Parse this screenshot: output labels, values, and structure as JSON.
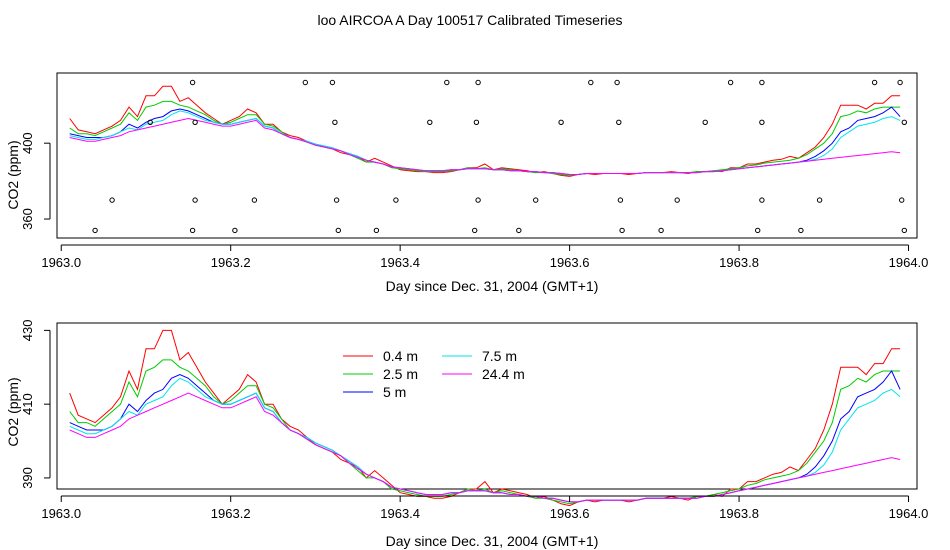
{
  "title": "loo AIRCOA A  Day 100517  Calibrated Timeseries",
  "colors": {
    "0.4 m": "#ff0000",
    "2.5 m": "#00cc00",
    "5 m": "#0000ff",
    "7.5 m": "#00e5ee",
    "24.4 m": "#ff00ff",
    "flags": "#000000"
  },
  "chart_data": [
    {
      "type": "line",
      "xlabel": "Day since Dec. 31, 2004 (GMT+1)",
      "ylabel": "CO2 (ppm)",
      "xlim": [
        1962.995,
        1964.01
      ],
      "ylim": [
        350,
        437
      ],
      "xticks": [
        1963.0,
        1963.2,
        1963.4,
        1963.6,
        1963.8,
        1964.0
      ],
      "xtick_labels": [
        "1963.0",
        "1963.2",
        "1963.4",
        "1963.6",
        "1963.8",
        "1964.0"
      ],
      "yticks": [
        360,
        400
      ],
      "ytick_labels": [
        "360",
        "400"
      ],
      "grid": false,
      "legend": "none",
      "x": [
        1963.01,
        1963.02,
        1963.03,
        1963.04,
        1963.05,
        1963.06,
        1963.07,
        1963.08,
        1963.09,
        1963.1,
        1963.11,
        1963.12,
        1963.13,
        1963.14,
        1963.15,
        1963.16,
        1963.17,
        1963.18,
        1963.19,
        1963.2,
        1963.21,
        1963.22,
        1963.23,
        1963.24,
        1963.25,
        1963.26,
        1963.27,
        1963.28,
        1963.29,
        1963.3,
        1963.31,
        1963.32,
        1963.33,
        1963.34,
        1963.35,
        1963.36,
        1963.37,
        1963.38,
        1963.39,
        1963.4,
        1963.41,
        1963.42,
        1963.43,
        1963.44,
        1963.45,
        1963.46,
        1963.47,
        1963.48,
        1963.49,
        1963.5,
        1963.51,
        1963.52,
        1963.53,
        1963.54,
        1963.55,
        1963.56,
        1963.57,
        1963.58,
        1963.59,
        1963.6,
        1963.61,
        1963.62,
        1963.63,
        1963.64,
        1963.65,
        1963.66,
        1963.67,
        1963.68,
        1963.69,
        1963.7,
        1963.71,
        1963.72,
        1963.73,
        1963.74,
        1963.75,
        1963.76,
        1963.77,
        1963.78,
        1963.79,
        1963.8,
        1963.81,
        1963.82,
        1963.83,
        1963.84,
        1963.85,
        1963.86,
        1963.87,
        1963.88,
        1963.89,
        1963.9,
        1963.91,
        1963.92,
        1963.93,
        1963.94,
        1963.95,
        1963.96,
        1963.97,
        1963.98,
        1963.99
      ],
      "series": [
        {
          "name": "0.4 m",
          "values": [
            413,
            407,
            406,
            405,
            407,
            409,
            412,
            419,
            414,
            425,
            425,
            430,
            430,
            422,
            424,
            420,
            416,
            413,
            410,
            412,
            414,
            418,
            416,
            410,
            410,
            406,
            404,
            403,
            401,
            399,
            398,
            397,
            395,
            394,
            393,
            390,
            392,
            390,
            388,
            386,
            385.5,
            385,
            385,
            384.5,
            384.5,
            385,
            386,
            387,
            387,
            389,
            386,
            387,
            386.5,
            386,
            385.5,
            384.5,
            385,
            384,
            383,
            382.5,
            383.5,
            384,
            383.5,
            384,
            384,
            384,
            383.5,
            384,
            384.5,
            384.5,
            384.5,
            385,
            384.5,
            384,
            385,
            385,
            385.5,
            385,
            387,
            387,
            389,
            389,
            390,
            391,
            391.5,
            393,
            392,
            395,
            398,
            403,
            410,
            420,
            420,
            420,
            418,
            421,
            421,
            425,
            425
          ]
        },
        {
          "name": "2.5 m",
          "values": [
            408,
            405,
            405,
            404,
            406,
            408,
            410,
            416,
            412,
            419,
            420,
            422,
            422,
            420,
            419,
            417,
            415,
            412,
            410,
            411,
            413,
            415,
            415,
            410,
            409,
            406,
            403,
            402,
            400.5,
            399,
            398,
            397,
            396,
            394,
            392,
            390,
            390,
            389,
            387,
            386.5,
            386,
            385.5,
            385,
            385,
            385,
            385.5,
            386,
            387,
            386.5,
            387,
            386,
            386.5,
            386,
            385.5,
            385,
            384.5,
            384.5,
            384,
            383.5,
            383,
            383.5,
            384,
            384,
            384,
            384,
            384,
            384,
            384,
            384.5,
            384.5,
            384.5,
            384.5,
            384.5,
            384.5,
            385,
            385,
            385.5,
            386,
            386.5,
            387,
            388,
            388.5,
            389.5,
            390,
            390.5,
            391,
            392,
            394,
            397,
            400,
            405,
            414,
            415,
            417,
            416,
            418,
            419,
            419,
            419
          ]
        },
        {
          "name": "5 m",
          "values": [
            405,
            404,
            403,
            403,
            403,
            404,
            406,
            410,
            408,
            411,
            413,
            414,
            417,
            418,
            417,
            415,
            413,
            411,
            410,
            410,
            411,
            412,
            413,
            409,
            408,
            405,
            403,
            402,
            401,
            399.5,
            398.5,
            397.5,
            396,
            394.5,
            393,
            391,
            390,
            389,
            387.5,
            387,
            386.5,
            386,
            385.5,
            385.5,
            385.5,
            386,
            386,
            386.5,
            386.5,
            386.5,
            386,
            386,
            385.5,
            385.5,
            385,
            385,
            384.5,
            384.5,
            384,
            383.5,
            383.5,
            384,
            384,
            384,
            384,
            384,
            384,
            384,
            384.5,
            384.5,
            384.5,
            384.5,
            384.5,
            384.5,
            384.5,
            385,
            385,
            385.5,
            386,
            386.5,
            387,
            387.5,
            388,
            388.5,
            389,
            389.5,
            390,
            391,
            393,
            396,
            400,
            406,
            408,
            412,
            413,
            414,
            416,
            419,
            414
          ]
        },
        {
          "name": "7.5 m",
          "values": [
            404,
            403,
            402,
            402,
            403,
            404,
            406,
            408,
            407,
            410,
            411,
            412,
            415,
            417,
            416,
            414,
            412,
            411,
            410,
            410,
            411,
            412,
            413,
            409,
            408,
            405,
            403,
            402,
            401,
            399.5,
            398.5,
            397.5,
            396,
            394.5,
            393,
            391,
            390,
            389,
            387.5,
            387,
            386.5,
            386,
            385.5,
            385.5,
            385.5,
            386,
            386,
            386.5,
            386.5,
            386.5,
            386,
            386,
            385.5,
            385.5,
            385,
            385,
            384.5,
            384.5,
            384,
            383.5,
            383.5,
            384,
            384,
            384,
            384,
            384,
            384,
            384,
            384.5,
            384.5,
            384.5,
            384.5,
            384.5,
            384.5,
            384.5,
            385,
            385,
            385.5,
            386,
            386.5,
            387,
            387.5,
            388,
            388.5,
            389,
            389.5,
            390,
            390.5,
            391.5,
            393.5,
            397,
            403,
            406,
            409,
            410,
            411,
            413,
            414,
            412
          ]
        },
        {
          "name": "24.4 m",
          "values": [
            403,
            402,
            401,
            401,
            402,
            403,
            404,
            406,
            407,
            408,
            409,
            410,
            411,
            412,
            413,
            412,
            411,
            410,
            409,
            409,
            410,
            411,
            412,
            408,
            407,
            405,
            403,
            402,
            400.5,
            399,
            398,
            397,
            396,
            394,
            392.5,
            391,
            390,
            389,
            387.5,
            387,
            386.5,
            386,
            385.5,
            385.5,
            385.5,
            386,
            386,
            386.5,
            386.5,
            386.5,
            386,
            386,
            385.5,
            385.5,
            385,
            385,
            384.5,
            384.5,
            384,
            383.5,
            383.5,
            384,
            384,
            384,
            384,
            384,
            384,
            384,
            384.5,
            384.5,
            384.5,
            384.5,
            384.5,
            384.5,
            384.5,
            385,
            385,
            385.5,
            386,
            386.5,
            387,
            387.5,
            388,
            388.5,
            389,
            389.5,
            390,
            390.5,
            391,
            391.5,
            392,
            392.5,
            393,
            393.5,
            394,
            394.5,
            395,
            395.5,
            395
          ]
        }
      ],
      "markers": {
        "style": "open-circle",
        "x": [
          1963.155,
          1963.288,
          1963.32,
          1963.455,
          1963.492,
          1963.625,
          1963.656,
          1963.79,
          1963.827,
          1963.96,
          1963.99,
          1963.105,
          1963.158,
          1963.323,
          1963.435,
          1963.49,
          1963.59,
          1963.658,
          1963.76,
          1963.827,
          1963.995,
          1963.06,
          1963.158,
          1963.228,
          1963.325,
          1963.395,
          1963.492,
          1963.56,
          1963.66,
          1963.727,
          1963.827,
          1963.895,
          1963.992,
          1963.04,
          1963.155,
          1963.205,
          1963.327,
          1963.372,
          1963.488,
          1963.54,
          1963.662,
          1963.708,
          1963.822,
          1963.873,
          1963.995
        ],
        "y": [
          432,
          432,
          432,
          432,
          432,
          432,
          432,
          432,
          432,
          432,
          432,
          411,
          411,
          411,
          411,
          411,
          411,
          411,
          411,
          411,
          411,
          370,
          370,
          370,
          370,
          370,
          370,
          370,
          370,
          370,
          370,
          370,
          370,
          354,
          354,
          354,
          354,
          354,
          354,
          354,
          354,
          354,
          354,
          354,
          354
        ]
      }
    },
    {
      "type": "line",
      "xlabel": "Day since Dec. 31, 2004 (GMT+1)",
      "ylabel": "CO2 (ppm)",
      "xlim": [
        1962.995,
        1964.01
      ],
      "ylim": [
        387,
        432
      ],
      "xticks": [
        1963.0,
        1963.2,
        1963.4,
        1963.6,
        1963.8,
        1964.0
      ],
      "xtick_labels": [
        "1963.0",
        "1963.2",
        "1963.4",
        "1963.6",
        "1963.8",
        "1964.0"
      ],
      "yticks": [
        390,
        410,
        430
      ],
      "ytick_labels": [
        "390",
        "410",
        "430"
      ],
      "grid": false,
      "legend": "top-left",
      "legend_entries": [
        "0.4 m",
        "2.5 m",
        "5 m",
        "7.5 m",
        "24.4 m"
      ],
      "same_series_as_panel": 0
    }
  ]
}
